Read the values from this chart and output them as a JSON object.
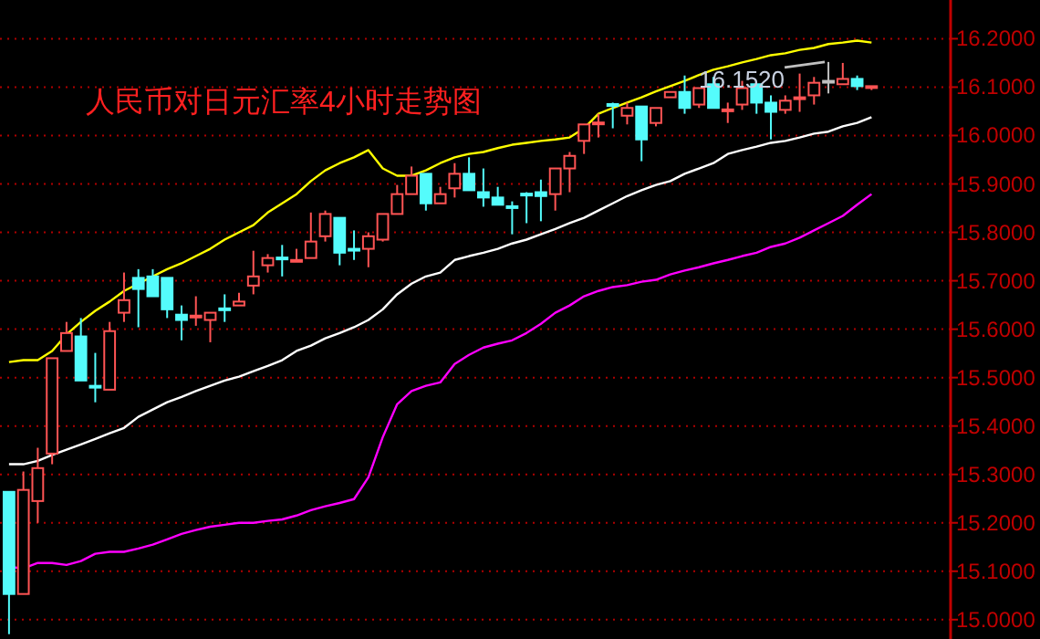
{
  "chart_data": {
    "type": "candlestick",
    "title": "人民币对日元汇率4小时走势图",
    "categories": [
      null,
      null,
      null,
      null,
      null,
      null,
      null,
      null,
      null,
      null,
      null,
      null,
      null,
      null,
      null,
      null,
      null,
      null,
      null,
      null,
      null,
      null,
      null,
      null,
      null,
      null,
      null,
      null,
      null,
      null,
      null,
      null,
      null,
      null,
      null,
      null,
      null,
      null,
      null,
      null,
      null,
      null,
      null,
      null,
      null,
      null,
      null,
      null,
      null,
      null,
      null,
      null,
      null,
      null,
      null,
      null,
      null,
      null,
      null,
      null,
      null
    ],
    "ohlc": [
      [
        15.264,
        15.264,
        14.97,
        15.053
      ],
      [
        15.053,
        15.306,
        15.053,
        15.268
      ],
      [
        15.245,
        15.355,
        15.2,
        15.313
      ],
      [
        15.343,
        15.54,
        15.321,
        15.54
      ],
      [
        15.555,
        15.615,
        15.555,
        15.592
      ],
      [
        15.585,
        15.623,
        15.494,
        15.494
      ],
      [
        15.483,
        15.551,
        15.449,
        15.48
      ],
      [
        15.475,
        15.615,
        15.475,
        15.596
      ],
      [
        15.634,
        15.717,
        15.615,
        15.66
      ],
      [
        15.706,
        15.724,
        15.604,
        15.683
      ],
      [
        15.709,
        15.724,
        15.668,
        15.668
      ],
      [
        15.706,
        15.706,
        15.623,
        15.641
      ],
      [
        15.63,
        15.649,
        15.577,
        15.619
      ],
      [
        15.626,
        15.668,
        15.607,
        15.628
      ],
      [
        15.619,
        15.634,
        15.573,
        15.634
      ],
      [
        15.643,
        15.672,
        15.615,
        15.641
      ],
      [
        15.649,
        15.675,
        15.649,
        15.657
      ],
      [
        15.69,
        15.762,
        15.672,
        15.709
      ],
      [
        15.732,
        15.755,
        15.717,
        15.747
      ],
      [
        15.748,
        15.774,
        15.709,
        15.746
      ],
      [
        15.74,
        15.766,
        15.74,
        15.743
      ],
      [
        15.747,
        15.841,
        15.747,
        15.781
      ],
      [
        15.792,
        15.845,
        15.781,
        15.838
      ],
      [
        15.83,
        15.83,
        15.732,
        15.758
      ],
      [
        15.766,
        15.804,
        15.743,
        15.764
      ],
      [
        15.766,
        15.8,
        15.728,
        15.792
      ],
      [
        15.785,
        15.838,
        15.781,
        15.838
      ],
      [
        15.838,
        15.898,
        15.838,
        15.879
      ],
      [
        15.879,
        15.936,
        15.879,
        15.917
      ],
      [
        15.921,
        15.921,
        15.845,
        15.86
      ],
      [
        15.86,
        15.894,
        15.86,
        15.879
      ],
      [
        15.891,
        15.943,
        15.872,
        15.921
      ],
      [
        15.921,
        15.955,
        15.887,
        15.887
      ],
      [
        15.883,
        15.932,
        15.853,
        15.872
      ],
      [
        15.872,
        15.894,
        15.857,
        15.857
      ],
      [
        15.854,
        15.864,
        15.796,
        15.852
      ],
      [
        15.88,
        15.883,
        15.819,
        15.878
      ],
      [
        15.883,
        15.909,
        15.823,
        15.875
      ],
      [
        15.879,
        15.932,
        15.845,
        15.932
      ],
      [
        15.932,
        15.966,
        15.883,
        15.958
      ],
      [
        15.989,
        16.023,
        15.962,
        16.023
      ],
      [
        16.025,
        16.045,
        15.996,
        16.027
      ],
      [
        16.065,
        16.068,
        16.015,
        16.063
      ],
      [
        16.041,
        16.068,
        16.023,
        16.057
      ],
      [
        16.06,
        16.06,
        15.947,
        15.992
      ],
      [
        16.026,
        16.057,
        16.019,
        16.057
      ],
      [
        16.079,
        16.09,
        16.079,
        16.09
      ],
      [
        16.09,
        16.124,
        16.045,
        16.057
      ],
      [
        16.064,
        16.098,
        16.057,
        16.098
      ],
      [
        16.106,
        16.121,
        16.057,
        16.057
      ],
      [
        16.052,
        16.068,
        16.026,
        16.054
      ],
      [
        16.064,
        16.113,
        16.053,
        16.098
      ],
      [
        16.106,
        16.106,
        16.045,
        16.068
      ],
      [
        16.068,
        16.083,
        15.992,
        16.049
      ],
      [
        16.053,
        16.083,
        16.045,
        16.072
      ],
      [
        16.077,
        16.128,
        16.049,
        16.079
      ],
      [
        16.083,
        16.121,
        16.064,
        16.109
      ],
      [
        16.113,
        16.152,
        16.087,
        16.113
      ],
      [
        16.106,
        16.15,
        16.106,
        16.117
      ],
      [
        16.117,
        16.124,
        16.094,
        16.102
      ],
      [
        16.1,
        16.102,
        16.094,
        16.102
      ]
    ],
    "colors": [
      "#54fcfc",
      "#ff5454",
      "#ff5454",
      "#ff5454",
      "#ff5454",
      "#54fcfc",
      "#54fcfc",
      "#ff5454",
      "#ff5454",
      "#54fcfc",
      "#54fcfc",
      "#54fcfc",
      "#54fcfc",
      "#ff5454",
      "#ff5454",
      "#54fcfc",
      "#ff5454",
      "#ff5454",
      "#ff5454",
      "#54fcfc",
      "#ff5454",
      "#ff5454",
      "#ff5454",
      "#54fcfc",
      "#54fcfc",
      "#ff5454",
      "#ff5454",
      "#ff5454",
      "#ff5454",
      "#54fcfc",
      "#ff5454",
      "#ff5454",
      "#54fcfc",
      "#54fcfc",
      "#54fcfc",
      "#54fcfc",
      "#54fcfc",
      "#54fcfc",
      "#ff5454",
      "#ff5454",
      "#ff5454",
      "#ff5454",
      "#54fcfc",
      "#ff5454",
      "#54fcfc",
      "#ff5454",
      "#ff5454",
      "#54fcfc",
      "#ff5454",
      "#54fcfc",
      "#ff5454",
      "#ff5454",
      "#54fcfc",
      "#54fcfc",
      "#ff5454",
      "#ff5454",
      "#ff5454",
      "#c0c0c0",
      "#ff5454",
      "#54fcfc",
      "#ff5454"
    ],
    "series": [
      {
        "type": "line",
        "color": "#ffff00",
        "values": [
          15.532,
          15.536,
          15.536,
          15.555,
          15.589,
          15.615,
          15.638,
          15.657,
          15.679,
          15.694,
          15.709,
          15.724,
          15.736,
          15.751,
          15.766,
          15.785,
          15.8,
          15.815,
          15.841,
          15.86,
          15.879,
          15.906,
          15.928,
          15.943,
          15.955,
          15.97,
          15.932,
          15.917,
          15.917,
          15.928,
          15.943,
          15.955,
          15.962,
          15.966,
          15.974,
          15.981,
          15.985,
          15.989,
          15.992,
          15.996,
          16.015,
          16.045,
          16.057,
          16.068,
          16.079,
          16.091,
          16.102,
          16.113,
          16.125,
          16.136,
          16.143,
          16.151,
          16.158,
          16.166,
          16.17,
          16.177,
          16.181,
          16.189,
          16.192,
          16.196,
          16.192
        ]
      },
      {
        "type": "line",
        "color": "#ffffff",
        "values": [
          15.321,
          15.321,
          15.328,
          15.34,
          15.351,
          15.362,
          15.373,
          15.385,
          15.396,
          15.419,
          15.434,
          15.449,
          15.46,
          15.472,
          15.483,
          15.494,
          15.502,
          15.513,
          15.524,
          15.536,
          15.555,
          15.566,
          15.581,
          15.592,
          15.604,
          15.619,
          15.641,
          15.672,
          15.694,
          15.709,
          15.717,
          15.743,
          15.751,
          15.758,
          15.766,
          15.777,
          15.785,
          15.796,
          15.807,
          15.819,
          15.83,
          15.845,
          15.86,
          15.875,
          15.887,
          15.898,
          15.906,
          15.921,
          15.932,
          15.943,
          15.962,
          15.97,
          15.977,
          15.985,
          15.989,
          15.996,
          16.004,
          16.008,
          16.019,
          16.026,
          16.038
        ]
      },
      {
        "type": "line",
        "color": "#ff00ff",
        "values": [
          15.109,
          15.106,
          15.117,
          15.117,
          15.113,
          15.121,
          15.136,
          15.14,
          15.14,
          15.147,
          15.155,
          15.166,
          15.177,
          15.185,
          15.192,
          15.196,
          15.2,
          15.2,
          15.204,
          15.207,
          15.215,
          15.226,
          15.234,
          15.241,
          15.249,
          15.294,
          15.377,
          15.445,
          15.472,
          15.483,
          15.49,
          15.528,
          15.547,
          15.562,
          15.57,
          15.577,
          15.592,
          15.611,
          15.634,
          15.649,
          15.668,
          15.679,
          15.687,
          15.691,
          15.698,
          15.702,
          15.713,
          15.721,
          15.728,
          15.736,
          15.743,
          15.751,
          15.758,
          15.77,
          15.777,
          15.789,
          15.804,
          15.819,
          15.834,
          15.857,
          15.879
        ]
      }
    ],
    "ylim": [
      14.96,
      16.28
    ],
    "yticks": [
      {
        "value": 15.0,
        "label": "15.0000"
      },
      {
        "value": 15.1,
        "label": "15.1000"
      },
      {
        "value": 15.2,
        "label": "15.2000"
      },
      {
        "value": 15.3,
        "label": "15.3000"
      },
      {
        "value": 15.4,
        "label": "15.4000"
      },
      {
        "value": 15.5,
        "label": "15.5000"
      },
      {
        "value": 15.6,
        "label": "15.6000"
      },
      {
        "value": 15.7,
        "label": "15.7000"
      },
      {
        "value": 15.8,
        "label": "15.8000"
      },
      {
        "value": 15.9,
        "label": "15.9000"
      },
      {
        "value": 16.0,
        "label": "16.0000"
      },
      {
        "value": 16.1,
        "label": "16.1000"
      },
      {
        "value": 16.2,
        "label": "16.2000"
      }
    ],
    "grid": "y",
    "tick_labels": "y",
    "annotations": [
      {
        "text": "16.1520",
        "y": 16.152
      }
    ]
  }
}
